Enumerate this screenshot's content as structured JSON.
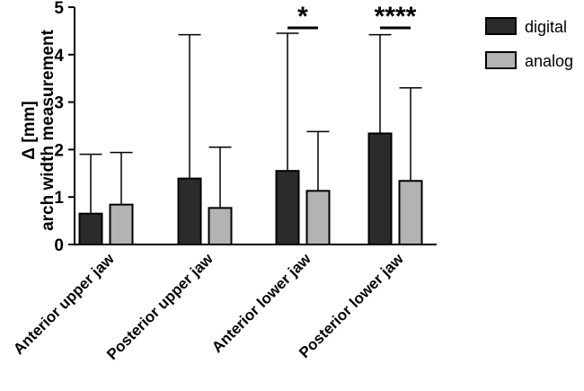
{
  "chart_data": {
    "type": "bar",
    "categories": [
      "Anterior upper jaw",
      "Posterior upper jaw",
      "Anterior lower jaw",
      "Posterior lower jaw"
    ],
    "series": [
      {
        "name": "digital",
        "color": "#2b2b2b",
        "values": [
          0.65,
          1.39,
          1.55,
          2.34
        ],
        "error_upper": [
          1.9,
          4.42,
          4.45,
          4.42
        ]
      },
      {
        "name": "analog",
        "color": "#b3b3b3",
        "values": [
          0.84,
          0.77,
          1.13,
          1.34
        ],
        "error_upper": [
          1.94,
          2.05,
          2.38,
          3.3
        ]
      }
    ],
    "ylabel_line1": "Δ [mm]",
    "ylabel_line2": "arch width measurement",
    "ylim": [
      0,
      5
    ],
    "yticks": [
      "0",
      "1",
      "2",
      "3",
      "4",
      "5"
    ],
    "significance": [
      {
        "category_index": 2,
        "label": "*"
      },
      {
        "category_index": 3,
        "label": "****"
      }
    ],
    "legend_position": "top-right"
  }
}
